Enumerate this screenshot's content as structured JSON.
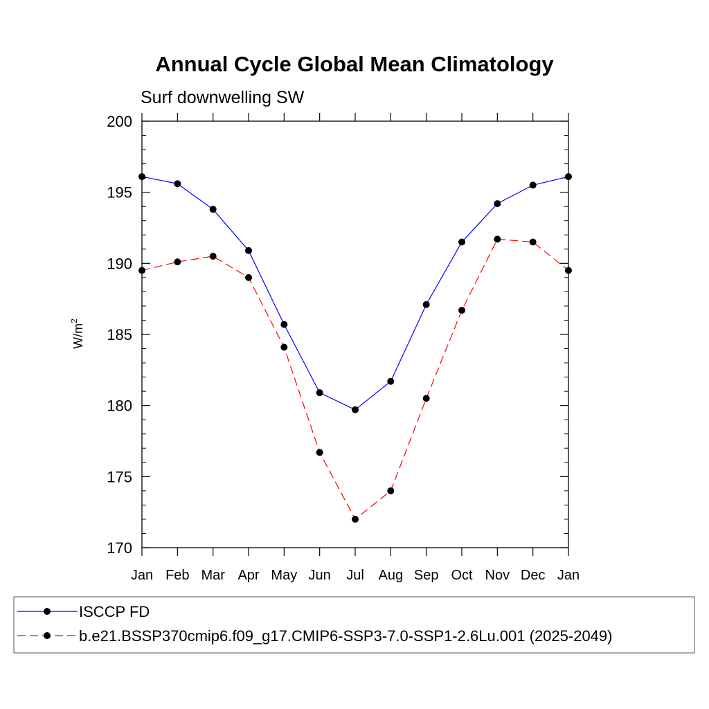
{
  "chart_data": {
    "type": "line",
    "title": "Annual Cycle Global Mean Climatology",
    "subtitle": "Surf downwelling SW",
    "ylabel": "W/m",
    "ylabel_sup": "2",
    "xlabel": "",
    "ylim": [
      170,
      200
    ],
    "yticks": [
      170,
      175,
      180,
      185,
      190,
      195,
      200
    ],
    "categories": [
      "Jan",
      "Feb",
      "Mar",
      "Apr",
      "May",
      "Jun",
      "Jul",
      "Aug",
      "Sep",
      "Oct",
      "Nov",
      "Dec",
      "Jan"
    ],
    "grid": false,
    "legend_position": "bottom",
    "series": [
      {
        "name": "ISCCP FD",
        "color": "#0000ff",
        "dash": "solid",
        "marker": "circle",
        "values": [
          196.1,
          195.6,
          193.8,
          190.9,
          185.7,
          180.9,
          179.7,
          181.7,
          187.1,
          191.5,
          194.2,
          195.5,
          196.1
        ]
      },
      {
        "name": "b.e21.BSSP370cmip6.f09_g17.CMIP6-SSP3-7.0-SSP1-2.6Lu.001 (2025-2049)",
        "color": "#ff0000",
        "dash": "dashed",
        "marker": "circle",
        "values": [
          189.5,
          190.1,
          190.5,
          189.0,
          184.1,
          176.7,
          172.0,
          174.0,
          180.5,
          186.7,
          191.7,
          191.5,
          189.5
        ]
      }
    ]
  }
}
